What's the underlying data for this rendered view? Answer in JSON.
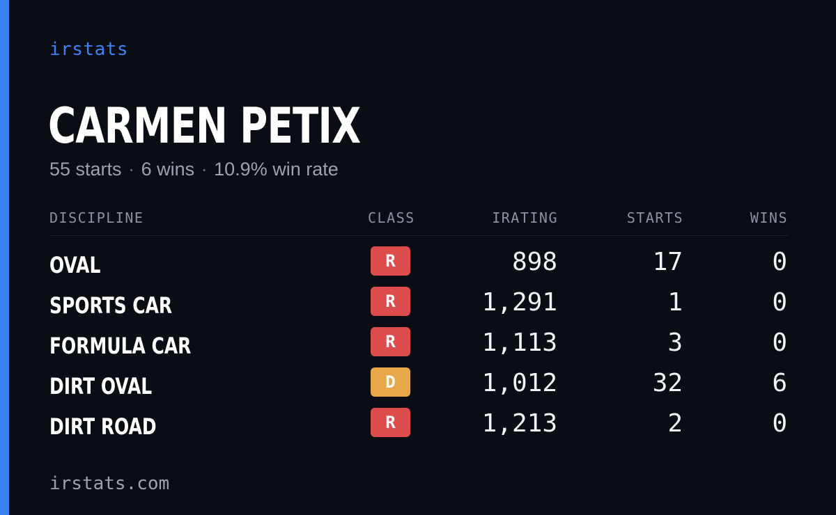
{
  "brand": "irstats",
  "driver": {
    "name": "CARMEN PETIX",
    "starts_text": "55 starts",
    "wins_text": "6 wins",
    "win_rate_text": "10.9% win rate",
    "separator": "·"
  },
  "table": {
    "headers": {
      "discipline": "DISCIPLINE",
      "class": "CLASS",
      "irating": "IRATING",
      "starts": "STARTS",
      "wins": "WINS"
    },
    "rows": [
      {
        "discipline": "OVAL",
        "class": "R",
        "class_color": "#dc4c4c",
        "irating": "898",
        "starts": "17",
        "wins": "0"
      },
      {
        "discipline": "SPORTS CAR",
        "class": "R",
        "class_color": "#dc4c4c",
        "irating": "1,291",
        "starts": "1",
        "wins": "0"
      },
      {
        "discipline": "FORMULA CAR",
        "class": "R",
        "class_color": "#dc4c4c",
        "irating": "1,113",
        "starts": "3",
        "wins": "0"
      },
      {
        "discipline": "DIRT OVAL",
        "class": "D",
        "class_color": "#e8a84a",
        "irating": "1,012",
        "starts": "32",
        "wins": "6"
      },
      {
        "discipline": "DIRT ROAD",
        "class": "R",
        "class_color": "#dc4c4c",
        "irating": "1,213",
        "starts": "2",
        "wins": "0"
      }
    ]
  },
  "footer": {
    "url": "irstats.com"
  },
  "colors": {
    "background": "#0b0d14",
    "accent": "#3b82f6",
    "class_r": "#dc4c4c",
    "class_d": "#e8a84a",
    "muted_text": "#9ca3af"
  }
}
